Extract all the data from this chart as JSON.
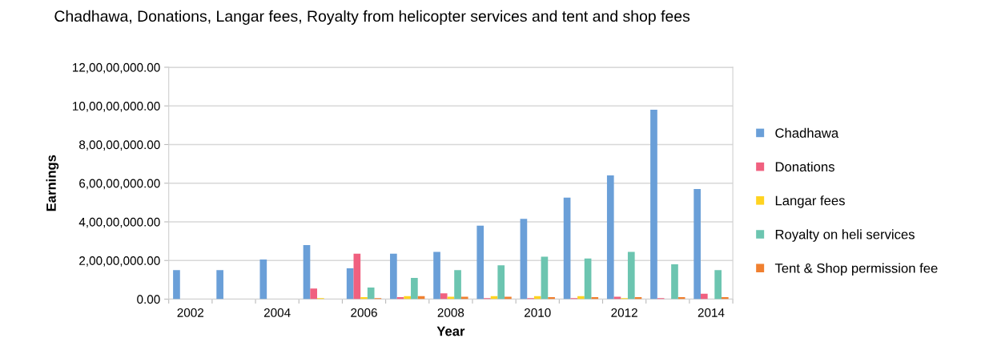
{
  "chart_data": {
    "type": "bar",
    "title": "Chadhawa, Donations, Langar fees, Royalty from helicopter services and tent and shop fees",
    "xlabel": "Year",
    "ylabel": "Earnings",
    "categories": [
      "2002",
      null,
      "2004",
      null,
      "2006",
      null,
      "2008",
      null,
      "2010",
      null,
      "2012",
      null,
      "2014"
    ],
    "series": [
      {
        "name": "Chadhawa",
        "color": "#6a9fd8",
        "values": [
          15000000,
          15000000,
          20500000,
          28000000,
          16000000,
          23500000,
          24500000,
          38000000,
          41500000,
          52500000,
          64000000,
          98000000,
          57000000
        ]
      },
      {
        "name": "Donations",
        "color": "#f0607f",
        "values": [
          null,
          null,
          null,
          5500000,
          23500000,
          1000000,
          3000000,
          500000,
          500000,
          500000,
          1200000,
          500000,
          2800000
        ]
      },
      {
        "name": "Langar fees",
        "color": "#ffd320",
        "values": [
          null,
          null,
          null,
          500000,
          1000000,
          1500000,
          1200000,
          1500000,
          1500000,
          1500000,
          500000,
          null,
          null
        ]
      },
      {
        "name": "Royalty on heli services",
        "color": "#6cc5b0",
        "values": [
          null,
          null,
          null,
          null,
          6000000,
          11000000,
          15000000,
          17500000,
          22000000,
          21000000,
          24500000,
          18000000,
          15000000
        ]
      },
      {
        "name": "Tent & Shop permission fee",
        "color": "#f08030",
        "values": [
          null,
          null,
          null,
          null,
          500000,
          1500000,
          1200000,
          1200000,
          1000000,
          1000000,
          1000000,
          1000000,
          1000000
        ]
      }
    ],
    "ylim": [
      0,
      120000000
    ],
    "yticks": [
      {
        "value": 0,
        "label": "0.00"
      },
      {
        "value": 20000000,
        "label": "2,00,00,000.00"
      },
      {
        "value": 40000000,
        "label": "4,00,00,000.00"
      },
      {
        "value": 60000000,
        "label": "6,00,00,000.00"
      },
      {
        "value": 80000000,
        "label": "8,00,00,000.00"
      },
      {
        "value": 100000000,
        "label": "10,00,00,000.00"
      },
      {
        "value": 120000000,
        "label": "12,00,00,000.00"
      }
    ],
    "grid": "y",
    "legend": "right"
  }
}
